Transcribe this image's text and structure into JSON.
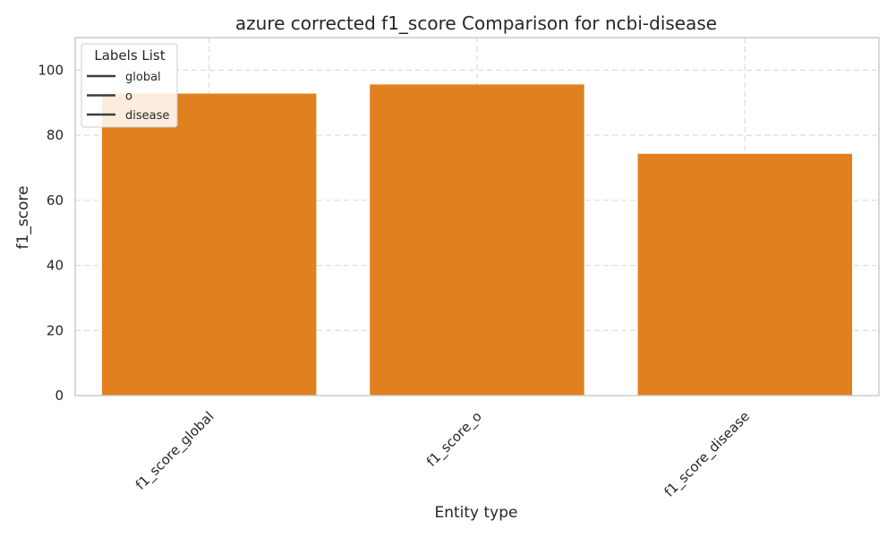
{
  "chart_data": {
    "type": "bar",
    "title": "azure corrected f1_score Comparison for ncbi-disease",
    "xlabel": "Entity type",
    "ylabel": "f1_score",
    "categories": [
      "f1_score_global",
      "f1_score_o",
      "f1_score_disease"
    ],
    "values": [
      92.8,
      95.6,
      74.3
    ],
    "ylim": [
      0,
      110
    ],
    "yticks": [
      0,
      20,
      40,
      60,
      80,
      100
    ],
    "grid": true,
    "bar_color": "#e1801f",
    "legend": {
      "title": "Labels List",
      "position": "top-left",
      "entries": [
        "global",
        "o",
        "disease"
      ]
    }
  }
}
